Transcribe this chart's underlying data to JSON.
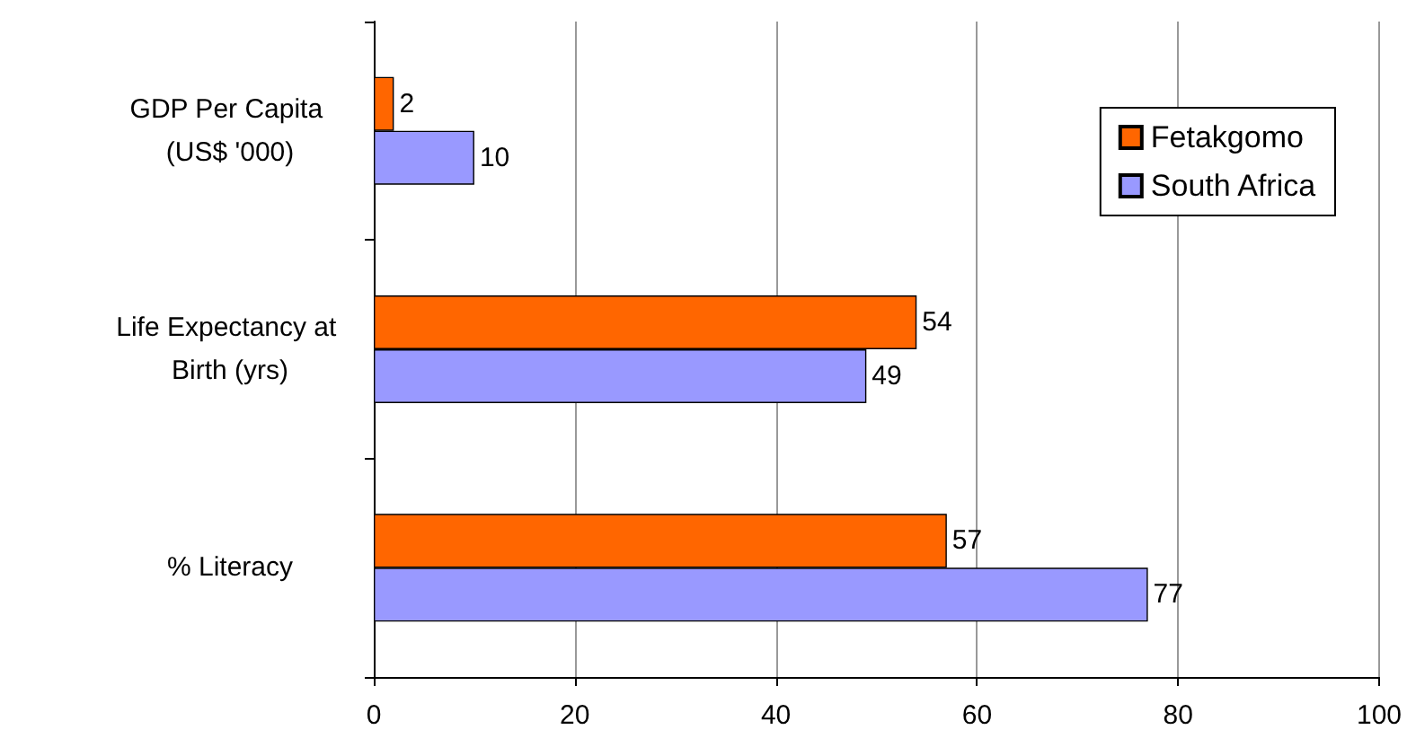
{
  "chart_data": {
    "type": "bar",
    "orientation": "horizontal",
    "categories": [
      "GDP Per Capita (US$ '000)",
      "Life Expectancy at Birth (yrs)",
      "% Literacy"
    ],
    "series": [
      {
        "name": "Fetakgomo",
        "color": "#ff6600",
        "values": [
          2,
          54,
          57
        ]
      },
      {
        "name": "South Africa",
        "color": "#9999ff",
        "values": [
          10,
          49,
          77
        ]
      }
    ],
    "xlim": [
      0,
      100
    ],
    "xticks": [
      0,
      20,
      40,
      60,
      80,
      100
    ],
    "grid": "x",
    "legend": "top right",
    "data_labels": true
  }
}
